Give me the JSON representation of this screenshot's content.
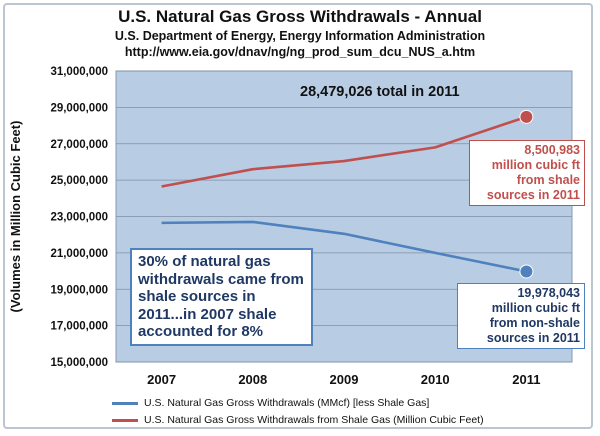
{
  "title": "U.S. Natural Gas Gross Withdrawals - Annual",
  "subtitle_lines": [
    "U.S. Department of Energy, Energy Information Administration",
    "http://www.eia.gov/dnav/ng/ng_prod_sum_dcu_NUS_a.htm"
  ],
  "colors": {
    "plot_background": "#b8cce4",
    "gridline": "#7f8fa6",
    "non_shale": "#4f81bd",
    "shale": "#c0504d"
  },
  "annotations": {
    "total": "28,479,026 total  in 2011",
    "shale_2011": [
      "8,500,983",
      "million cubic ft",
      "from shale",
      "sources in 2011"
    ],
    "non_shale_2011": [
      "19,978,043",
      "million cubic ft",
      "from non-shale",
      "sources in 2011"
    ],
    "share": "30% of natural gas withdrawals came from shale sources in 2011...in 2007 shale accounted for 8%"
  },
  "chart_data": {
    "type": "line",
    "title": "U.S. Natural Gas Gross Withdrawals - Annual",
    "ylabel": "(Volumes in Million Cubic Feet)",
    "xlabel": "",
    "categories": [
      "2007",
      "2008",
      "2009",
      "2010",
      "2011"
    ],
    "ylim": [
      15000000,
      31000000
    ],
    "yticks": [
      15000000,
      17000000,
      19000000,
      21000000,
      23000000,
      25000000,
      27000000,
      29000000,
      31000000
    ],
    "ytick_labels": [
      "15,000,000",
      "17,000,000",
      "19,000,000",
      "21,000,000",
      "23,000,000",
      "25,000,000",
      "27,000,000",
      "29,000,000",
      "31,000,000"
    ],
    "grid": true,
    "legend_position": "bottom",
    "series": [
      {
        "name": "U.S. Natural Gas Gross Withdrawals (MMcf)  [less Shale Gas]",
        "color": "#4f81bd",
        "values": [
          22650000,
          22700000,
          22050000,
          21000000,
          19978043
        ],
        "end_marker": true
      },
      {
        "name": "U.S. Natural Gas Gross Withdrawals from Shale Gas (Million Cubic Feet)",
        "color": "#c0504d",
        "values": [
          24650000,
          25600000,
          26050000,
          26800000,
          28479026
        ],
        "end_marker": true
      }
    ]
  }
}
